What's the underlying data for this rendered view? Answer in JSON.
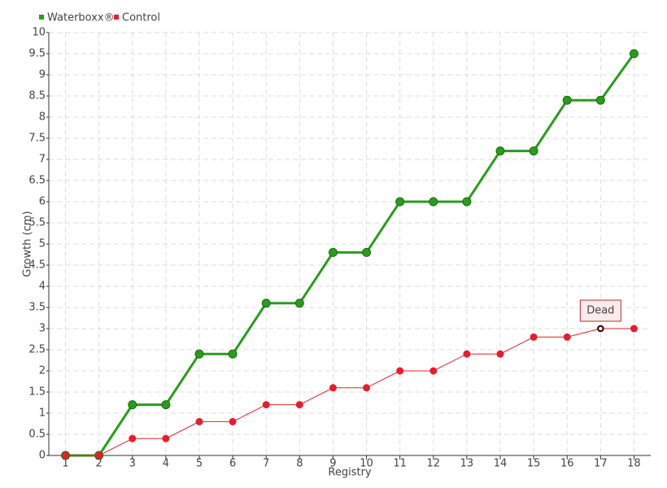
{
  "chart_data": {
    "type": "line",
    "x_label": "Registry",
    "y_label": "Growth (cm)",
    "categories": [
      "1",
      "2",
      "3",
      "4",
      "5",
      "6",
      "7",
      "8",
      "9",
      "10",
      "11",
      "12",
      "13",
      "14",
      "15",
      "16",
      "17",
      "18"
    ],
    "series": [
      {
        "name": "Waterboxx®",
        "color": "#2b9b1f",
        "values": [
          0,
          0,
          1.2,
          1.2,
          2.4,
          2.4,
          3.6,
          3.6,
          4.8,
          4.8,
          6,
          6,
          6,
          7.2,
          7.2,
          8.4,
          8.4,
          9.5
        ]
      },
      {
        "name": "Control",
        "color": "#e41f2d",
        "values": [
          0,
          0,
          0.4,
          0.4,
          0.8,
          0.8,
          1.2,
          1.2,
          1.6,
          1.6,
          2,
          2,
          2.4,
          2.4,
          2.8,
          2.8,
          3,
          3
        ]
      }
    ],
    "ylim": [
      0,
      10
    ],
    "yticks": [
      0,
      0.5,
      1,
      1.5,
      2,
      2.5,
      3,
      3.5,
      4,
      4.5,
      5,
      5.5,
      6,
      6.5,
      7,
      7.5,
      8,
      8.5,
      9,
      9.5,
      10
    ],
    "grid": true,
    "legend": "top-left",
    "annotations": [
      {
        "text": "Dead",
        "series": "Control",
        "category": "17"
      }
    ]
  }
}
